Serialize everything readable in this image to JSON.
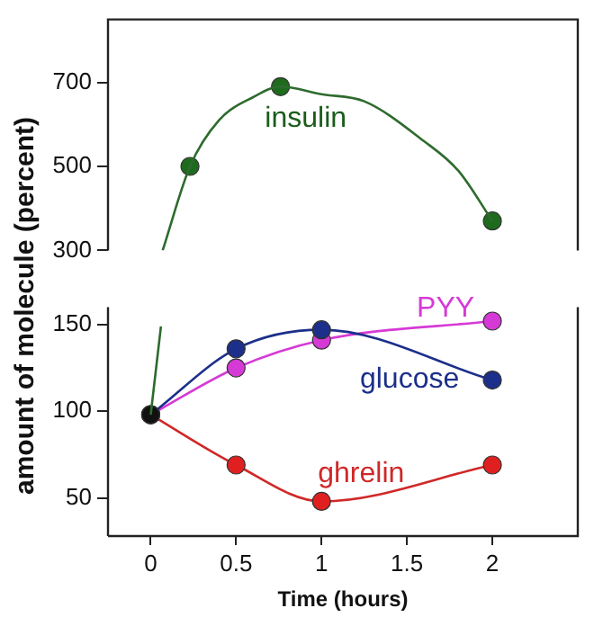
{
  "chart_data": [
    {
      "type": "line",
      "ylabel": "amount of molecule (percent)",
      "xlim": [
        -0.25,
        2.5
      ],
      "ylim": [
        300,
        850
      ],
      "yticks": [
        300,
        500,
        700
      ],
      "tick_labels": "y",
      "grid": false,
      "legend": false,
      "series": [
        {
          "name": "insulin",
          "color": "#2e6b2e",
          "marker": "none",
          "x": [
            0.07,
            0.23,
            0.4,
            0.6,
            0.76,
            1,
            1.25,
            1.6,
            1.8,
            2
          ],
          "values": [
            300,
            500,
            610,
            665,
            690,
            672,
            655,
            560,
            490,
            370
          ]
        },
        {
          "type": "scatter",
          "color": "#1e6b1e",
          "marker": "circle",
          "x": [
            0.23,
            0.76,
            2
          ],
          "values": [
            500,
            690,
            370
          ]
        }
      ]
    },
    {
      "type": "line",
      "xlabel": "Time (hours)",
      "xlim": [
        -0.25,
        2.5
      ],
      "ylim": [
        28,
        160
      ],
      "xticks": [
        0,
        0.5,
        1,
        1.5,
        2
      ],
      "yticks": [
        50,
        100,
        150
      ],
      "grid": false,
      "legend": false,
      "marker": "circle",
      "series": [
        {
          "color": "#2e6b2e",
          "marker": "none",
          "x": [
            0,
            0.06
          ],
          "values": [
            98,
            149
          ]
        },
        {
          "name": "glucose",
          "color": "#1c2f8a",
          "colors": [
            "#111111",
            "#1c2f8a",
            "#1c2f8a",
            "#1c2f8a"
          ],
          "x": [
            0,
            0.5,
            1,
            2
          ],
          "values": [
            98,
            136,
            147,
            118
          ]
        },
        {
          "name": "PYY",
          "color": "#d63ad6",
          "colors": [
            "#111111",
            "#d63ad6",
            "#d63ad6",
            "#d63ad6"
          ],
          "x": [
            0,
            0.5,
            1,
            2
          ],
          "values": [
            98,
            125,
            141,
            152
          ]
        },
        {
          "name": "ghrelin",
          "color": "#d02828",
          "colors": [
            "#111111",
            "#e02020",
            "#e02020",
            "#e02020"
          ],
          "x": [
            0,
            0.5,
            1,
            2
          ],
          "values": [
            98,
            69,
            48,
            69
          ]
        }
      ]
    }
  ]
}
